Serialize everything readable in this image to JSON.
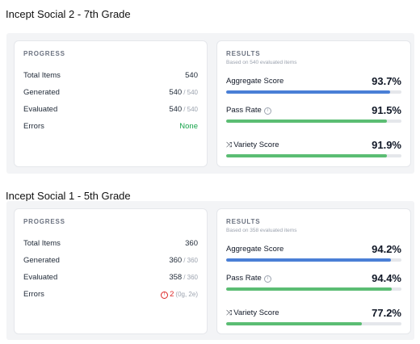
{
  "sections": [
    {
      "title": "Incept Social 2 - 7th Grade",
      "progress": {
        "heading": "PROGRESS",
        "total_label": "Total Items",
        "total_value": "540",
        "generated_label": "Generated",
        "generated_value": "540",
        "generated_denom": "/ 540",
        "evaluated_label": "Evaluated",
        "evaluated_value": "540",
        "evaluated_denom": "/ 540",
        "errors_label": "Errors",
        "errors_value": "None",
        "errors_detail": ""
      },
      "results": {
        "heading": "RESULTS",
        "subheading": "Based on 540 evaluated items",
        "metrics": [
          {
            "label": "Aggregate Score",
            "value": "93.7%",
            "fraction": 0.937,
            "color": "#4a7fd6"
          },
          {
            "label": "Pass Rate",
            "value": "91.5%",
            "fraction": 0.915,
            "color": "#5bbd73"
          },
          {
            "label": "Variety Score",
            "value": "91.9%",
            "fraction": 0.919,
            "color": "#5bbd73"
          }
        ]
      }
    },
    {
      "title": "Incept Social 1 - 5th Grade",
      "progress": {
        "heading": "PROGRESS",
        "total_label": "Total Items",
        "total_value": "360",
        "generated_label": "Generated",
        "generated_value": "360",
        "generated_denom": "/ 360",
        "evaluated_label": "Evaluated",
        "evaluated_value": "358",
        "evaluated_denom": "/ 360",
        "errors_label": "Errors",
        "errors_value": "2",
        "errors_detail": "(0g, 2e)"
      },
      "results": {
        "heading": "RESULTS",
        "subheading": "Based on 358 evaluated items",
        "metrics": [
          {
            "label": "Aggregate Score",
            "value": "94.2%",
            "fraction": 0.942,
            "color": "#4a7fd6"
          },
          {
            "label": "Pass Rate",
            "value": "94.4%",
            "fraction": 0.944,
            "color": "#5bbd73"
          },
          {
            "label": "Variety Score",
            "value": "77.2%",
            "fraction": 0.772,
            "color": "#5bbd73"
          }
        ]
      }
    }
  ],
  "icons": {
    "info": "info-icon",
    "shuffle": "shuffle-icon",
    "error": "error-circle-icon"
  }
}
